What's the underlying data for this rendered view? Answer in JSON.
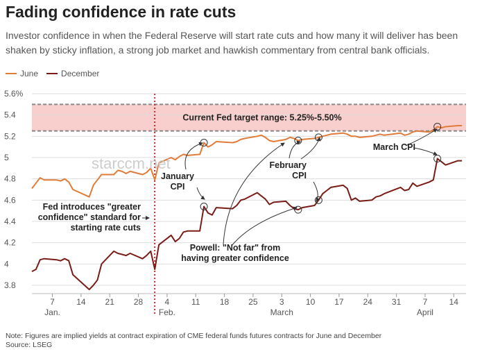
{
  "title": "Fading confidence in rate cuts",
  "subtitle": "Investor confidence in when the Federal Reserve will start rate cuts and how many it will deliver has been shaken by sticky inflation, a strong job market and hawkish commentary from central bank officials.",
  "watermark": "starccm.net",
  "note": "Note: Figures are implied yields at contract expiration of CME federal funds futures contracts for June and December",
  "source": "Source: LSEG",
  "colors": {
    "june": "#e07b39",
    "december": "#7a1c16",
    "band": "#f8cfcc",
    "band_border": "#888888",
    "vline": "#c62828",
    "grid": "#dddddd"
  },
  "chart_data": {
    "type": "line",
    "ylim": [
      3.8,
      5.6
    ],
    "yticks": [
      3.8,
      4,
      4.2,
      4.4,
      4.6,
      4.8,
      5,
      5.2,
      5.4,
      5.6
    ],
    "ytick_labels": [
      "3.8",
      "4",
      "4.2",
      "4.4",
      "4.6",
      "4.8",
      "5",
      "5.2",
      "5.4",
      "5.6%"
    ],
    "xlim": [
      "2024-01-02",
      "2024-04-17"
    ],
    "xticks": [
      "2024-01-07",
      "2024-01-14",
      "2024-01-21",
      "2024-01-28",
      "2024-02-04",
      "2024-02-11",
      "2024-02-18",
      "2024-02-25",
      "2024-03-03",
      "2024-03-10",
      "2024-03-17",
      "2024-03-24",
      "2024-03-31",
      "2024-04-07",
      "2024-04-14"
    ],
    "xtick_labels": [
      "7",
      "14",
      "21",
      "28",
      "4",
      "11",
      "18",
      "25",
      "3",
      "10",
      "17",
      "24",
      "31",
      "7",
      "14"
    ],
    "month_labels": [
      {
        "label": "Jan.",
        "date": "2024-01-07"
      },
      {
        "label": "Feb.",
        "date": "2024-02-04"
      },
      {
        "label": "March",
        "date": "2024-03-03"
      },
      {
        "label": "April",
        "date": "2024-04-07"
      }
    ],
    "target_range": {
      "low": 5.25,
      "high": 5.5,
      "label": "Current Fed target range: 5.25%-5.50%"
    },
    "vline": {
      "date": "2024-02-01"
    },
    "series": [
      {
        "name": "June",
        "points": [
          [
            "2024-01-02",
            4.71
          ],
          [
            "2024-01-03",
            4.76
          ],
          [
            "2024-01-04",
            4.81
          ],
          [
            "2024-01-05",
            4.79
          ],
          [
            "2024-01-08",
            4.79
          ],
          [
            "2024-01-09",
            4.78
          ],
          [
            "2024-01-10",
            4.8
          ],
          [
            "2024-01-11",
            4.77
          ],
          [
            "2024-01-12",
            4.7
          ],
          [
            "2024-01-16",
            4.63
          ],
          [
            "2024-01-17",
            4.74
          ],
          [
            "2024-01-18",
            4.79
          ],
          [
            "2024-01-19",
            4.84
          ],
          [
            "2024-01-22",
            4.84
          ],
          [
            "2024-01-23",
            4.88
          ],
          [
            "2024-01-24",
            4.87
          ],
          [
            "2024-01-25",
            4.85
          ],
          [
            "2024-01-26",
            4.87
          ],
          [
            "2024-01-29",
            4.84
          ],
          [
            "2024-01-30",
            4.86
          ],
          [
            "2024-01-31",
            4.9
          ],
          [
            "2024-02-01",
            4.79
          ],
          [
            "2024-02-02",
            4.95
          ],
          [
            "2024-02-05",
            5.0
          ],
          [
            "2024-02-06",
            4.98
          ],
          [
            "2024-02-07",
            5.01
          ],
          [
            "2024-02-08",
            5.03
          ],
          [
            "2024-02-09",
            5.02
          ],
          [
            "2024-02-12",
            5.03
          ],
          [
            "2024-02-13",
            5.14
          ],
          [
            "2024-02-14",
            5.1
          ],
          [
            "2024-02-15",
            5.12
          ],
          [
            "2024-02-16",
            5.15
          ],
          [
            "2024-02-20",
            5.14
          ],
          [
            "2024-02-21",
            5.15
          ],
          [
            "2024-02-22",
            5.17
          ],
          [
            "2024-02-23",
            5.18
          ],
          [
            "2024-02-26",
            5.2
          ],
          [
            "2024-02-27",
            5.21
          ],
          [
            "2024-02-28",
            5.19
          ],
          [
            "2024-02-29",
            5.16
          ],
          [
            "2024-03-01",
            5.15
          ],
          [
            "2024-03-04",
            5.17
          ],
          [
            "2024-03-05",
            5.19
          ],
          [
            "2024-03-06",
            5.18
          ],
          [
            "2024-03-07",
            5.16
          ],
          [
            "2024-03-08",
            5.17
          ],
          [
            "2024-03-11",
            5.18
          ],
          [
            "2024-03-12",
            5.19
          ],
          [
            "2024-03-13",
            5.2
          ],
          [
            "2024-03-14",
            5.21
          ],
          [
            "2024-03-15",
            5.22
          ],
          [
            "2024-03-18",
            5.23
          ],
          [
            "2024-03-19",
            5.22
          ],
          [
            "2024-03-20",
            5.2
          ],
          [
            "2024-03-21",
            5.2
          ],
          [
            "2024-03-22",
            5.19
          ],
          [
            "2024-03-25",
            5.2
          ],
          [
            "2024-03-26",
            5.21
          ],
          [
            "2024-03-27",
            5.22
          ],
          [
            "2024-03-28",
            5.21
          ],
          [
            "2024-04-01",
            5.23
          ],
          [
            "2024-04-02",
            5.21
          ],
          [
            "2024-04-03",
            5.22
          ],
          [
            "2024-04-04",
            5.24
          ],
          [
            "2024-04-05",
            5.25
          ],
          [
            "2024-04-08",
            5.24
          ],
          [
            "2024-04-09",
            5.26
          ],
          [
            "2024-04-10",
            5.29
          ],
          [
            "2024-04-11",
            5.28
          ],
          [
            "2024-04-12",
            5.29
          ],
          [
            "2024-04-15",
            5.3
          ],
          [
            "2024-04-16",
            5.3
          ]
        ]
      },
      {
        "name": "December",
        "points": [
          [
            "2024-01-02",
            3.93
          ],
          [
            "2024-01-03",
            3.95
          ],
          [
            "2024-01-04",
            4.04
          ],
          [
            "2024-01-05",
            4.05
          ],
          [
            "2024-01-08",
            4.04
          ],
          [
            "2024-01-09",
            4.03
          ],
          [
            "2024-01-10",
            4.05
          ],
          [
            "2024-01-11",
            4.03
          ],
          [
            "2024-01-12",
            3.9
          ],
          [
            "2024-01-16",
            3.76
          ],
          [
            "2024-01-17",
            3.8
          ],
          [
            "2024-01-18",
            3.85
          ],
          [
            "2024-01-19",
            4.0
          ],
          [
            "2024-01-22",
            4.12
          ],
          [
            "2024-01-23",
            4.1
          ],
          [
            "2024-01-24",
            4.09
          ],
          [
            "2024-01-25",
            4.08
          ],
          [
            "2024-01-26",
            4.1
          ],
          [
            "2024-01-29",
            4.05
          ],
          [
            "2024-01-30",
            4.08
          ],
          [
            "2024-01-31",
            4.12
          ],
          [
            "2024-02-01",
            3.95
          ],
          [
            "2024-02-02",
            4.18
          ],
          [
            "2024-02-05",
            4.27
          ],
          [
            "2024-02-06",
            4.21
          ],
          [
            "2024-02-07",
            4.24
          ],
          [
            "2024-02-08",
            4.3
          ],
          [
            "2024-02-09",
            4.31
          ],
          [
            "2024-02-12",
            4.31
          ],
          [
            "2024-02-13",
            4.54
          ],
          [
            "2024-02-14",
            4.48
          ],
          [
            "2024-02-15",
            4.46
          ],
          [
            "2024-02-16",
            4.53
          ],
          [
            "2024-02-20",
            4.52
          ],
          [
            "2024-02-21",
            4.55
          ],
          [
            "2024-02-22",
            4.6
          ],
          [
            "2024-02-23",
            4.61
          ],
          [
            "2024-02-26",
            4.67
          ],
          [
            "2024-02-27",
            4.64
          ],
          [
            "2024-02-28",
            4.61
          ],
          [
            "2024-02-29",
            4.56
          ],
          [
            "2024-03-01",
            4.58
          ],
          [
            "2024-03-04",
            4.59
          ],
          [
            "2024-03-05",
            4.55
          ],
          [
            "2024-03-06",
            4.52
          ],
          [
            "2024-03-07",
            4.51
          ],
          [
            "2024-03-08",
            4.53
          ],
          [
            "2024-03-11",
            4.55
          ],
          [
            "2024-03-12",
            4.6
          ],
          [
            "2024-03-13",
            4.66
          ],
          [
            "2024-03-14",
            4.69
          ],
          [
            "2024-03-15",
            4.72
          ],
          [
            "2024-03-18",
            4.74
          ],
          [
            "2024-03-19",
            4.71
          ],
          [
            "2024-03-20",
            4.6
          ],
          [
            "2024-03-21",
            4.62
          ],
          [
            "2024-03-22",
            4.59
          ],
          [
            "2024-03-25",
            4.6
          ],
          [
            "2024-03-26",
            4.63
          ],
          [
            "2024-03-27",
            4.64
          ],
          [
            "2024-03-28",
            4.66
          ],
          [
            "2024-04-01",
            4.72
          ],
          [
            "2024-04-02",
            4.69
          ],
          [
            "2024-04-03",
            4.7
          ],
          [
            "2024-04-04",
            4.76
          ],
          [
            "2024-04-05",
            4.73
          ],
          [
            "2024-04-08",
            4.77
          ],
          [
            "2024-04-09",
            4.79
          ],
          [
            "2024-04-10",
            4.99
          ],
          [
            "2024-04-11",
            4.96
          ],
          [
            "2024-04-12",
            4.93
          ],
          [
            "2024-04-15",
            4.97
          ],
          [
            "2024-04-16",
            4.97
          ]
        ]
      }
    ],
    "event_circles": [
      {
        "series": "June",
        "date": "2024-02-13",
        "value": 5.14
      },
      {
        "series": "June",
        "date": "2024-03-07",
        "value": 5.16
      },
      {
        "series": "June",
        "date": "2024-03-12",
        "value": 5.19
      },
      {
        "series": "June",
        "date": "2024-04-10",
        "value": 5.29
      },
      {
        "series": "December",
        "date": "2024-02-13",
        "value": 4.54
      },
      {
        "series": "December",
        "date": "2024-03-07",
        "value": 4.51
      },
      {
        "series": "December",
        "date": "2024-03-12",
        "value": 4.6
      },
      {
        "series": "December",
        "date": "2024-04-10",
        "value": 4.99
      }
    ],
    "annotations": [
      {
        "id": "jan_cpi",
        "lines": [
          "January",
          "CPI"
        ],
        "align": "middle"
      },
      {
        "id": "feb_cpi",
        "lines": [
          "February",
          "CPI"
        ],
        "align": "end"
      },
      {
        "id": "mar_cpi",
        "lines": [
          "March CPI"
        ],
        "align": "end"
      },
      {
        "id": "fed_greater",
        "lines": [
          "Fed introduces \"greater",
          "confidence\" standard for",
          "starting rate cuts"
        ],
        "align": "end"
      },
      {
        "id": "powell",
        "lines": [
          "Powell: \"Not far\" from",
          "having greater confidence"
        ],
        "align": "middle"
      }
    ]
  }
}
